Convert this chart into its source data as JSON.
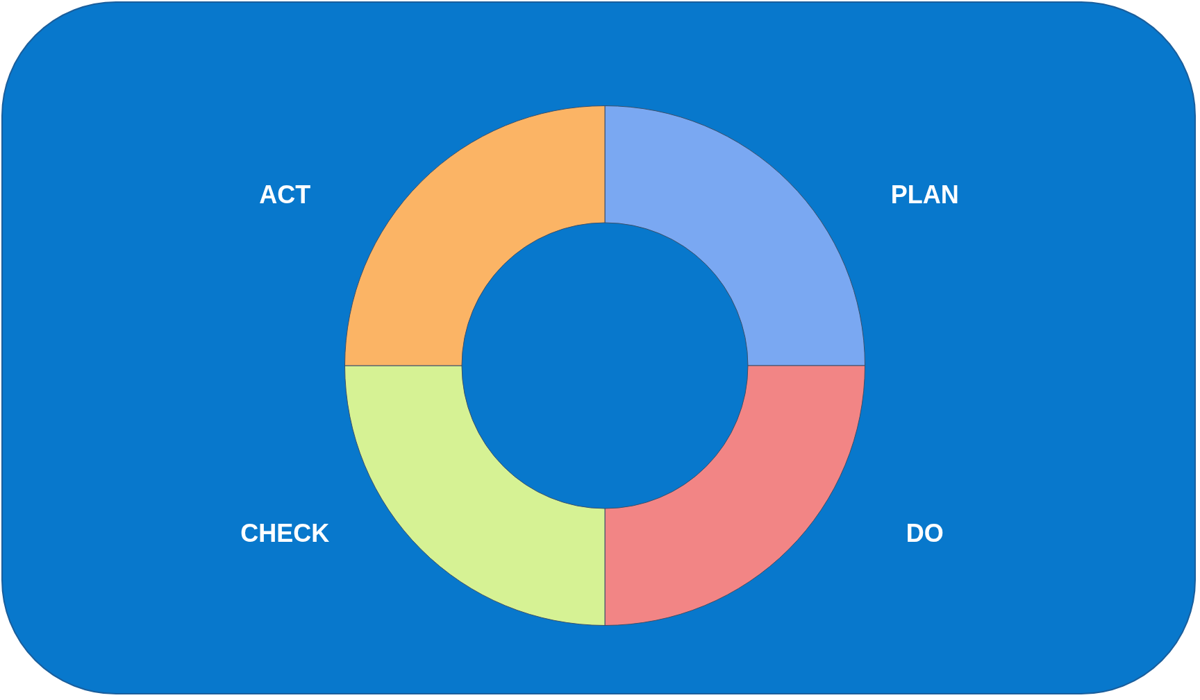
{
  "chart_data": {
    "type": "donut",
    "categories": [
      "PLAN",
      "DO",
      "CHECK",
      "ACT"
    ],
    "values": [
      25,
      25,
      25,
      25
    ],
    "colors": [
      "#7aa8f2",
      "#f28585",
      "#d6f294",
      "#fbb465"
    ]
  }
}
